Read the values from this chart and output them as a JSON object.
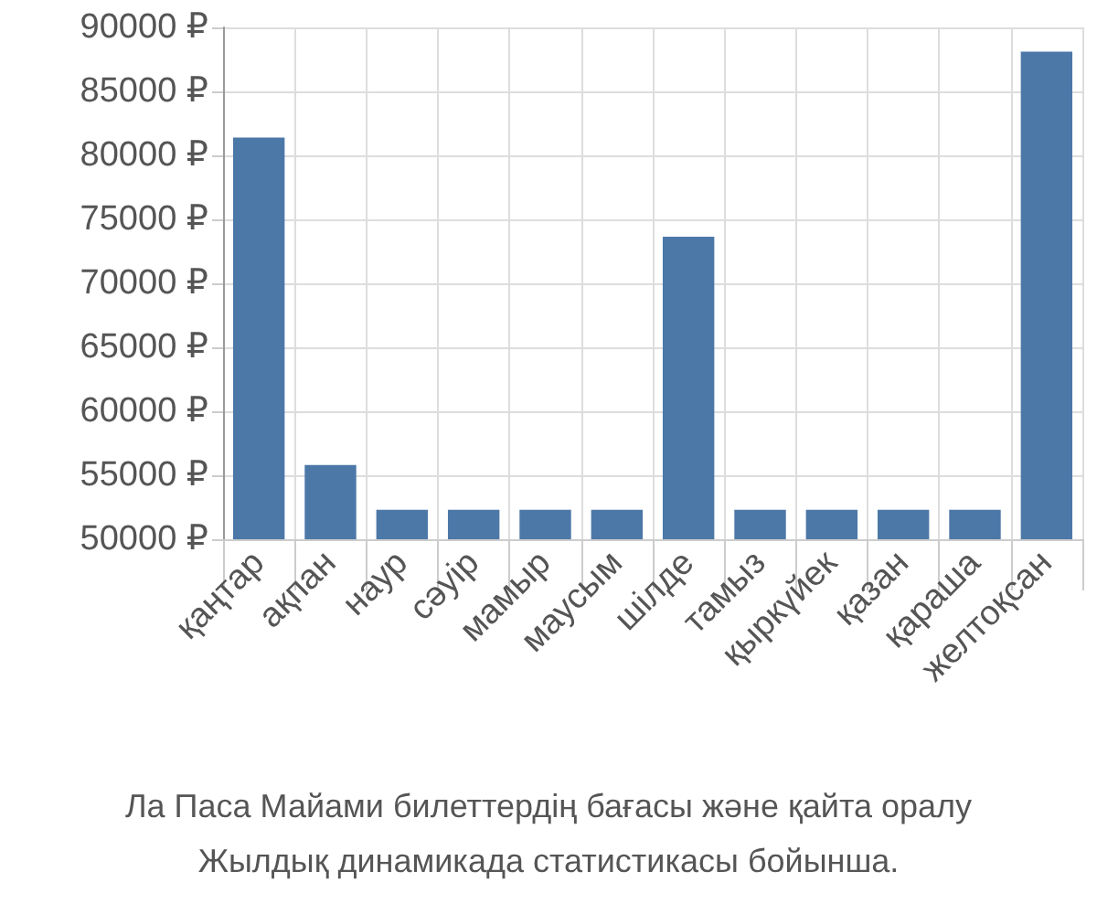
{
  "chart_data": {
    "type": "bar",
    "categories": [
      "қаңтар",
      "ақпан",
      "наур",
      "сәуір",
      "мамыр",
      "маусым",
      "шілде",
      "тамыз",
      "қыркүйек",
      "қазан",
      "қараша",
      "желтоқсан"
    ],
    "values": [
      81400,
      55800,
      52300,
      52300,
      52300,
      52300,
      73650,
      52300,
      52300,
      52300,
      52300,
      88100
    ],
    "color": "#4c78a8",
    "ylim": [
      50000,
      90000
    ],
    "yticks": [
      {
        "value": 50000,
        "label": "50000 ₽"
      },
      {
        "value": 55000,
        "label": "55000 ₽"
      },
      {
        "value": 60000,
        "label": "60000 ₽"
      },
      {
        "value": 65000,
        "label": "65000 ₽"
      },
      {
        "value": 70000,
        "label": "70000 ₽"
      },
      {
        "value": 75000,
        "label": "75000 ₽"
      },
      {
        "value": 80000,
        "label": "80000 ₽"
      },
      {
        "value": 85000,
        "label": "85000 ₽"
      },
      {
        "value": 90000,
        "label": "90000 ₽"
      }
    ],
    "grid": true,
    "annotations": [
      "Ла Паса Майами билеттердің бағасы және қайта оралу",
      "Жылдық динамикада статистикасы бойынша."
    ]
  }
}
